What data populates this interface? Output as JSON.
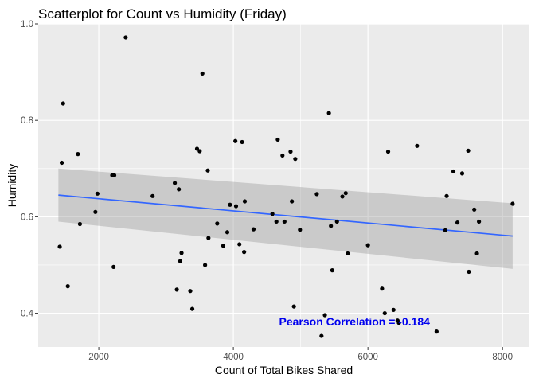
{
  "chart_data": {
    "type": "scatter",
    "title": "Scatterplot for Count vs Humidity (Friday)",
    "xlabel": "Count of Total Bikes Shared",
    "ylabel": "Humidity",
    "xlim": [
      1100,
      8400
    ],
    "ylim": [
      0.33,
      1.0
    ],
    "xticks": [
      2000,
      4000,
      6000,
      8000
    ],
    "yticks": [
      0.4,
      0.6,
      0.8,
      1.0
    ],
    "xtick_labels": [
      "2000",
      "4000",
      "6000",
      "8000"
    ],
    "ytick_labels": [
      "0.4",
      "0.6",
      "0.8",
      "1.0"
    ],
    "grid": true,
    "panel_background": "#ebebeb",
    "point_color": "#000000",
    "trend_color": "#3366ff",
    "band_color": "#999999",
    "annotation": {
      "text": "Pearson Correlation = -0.184",
      "x": 5800,
      "y": 0.383,
      "color": "#0000ee"
    },
    "regression": {
      "x": [
        1400,
        8150
      ],
      "y": [
        0.645,
        0.56
      ],
      "band_upper": [
        0.7,
        0.628
      ],
      "band_lower": [
        0.59,
        0.492
      ]
    },
    "points": [
      {
        "x": 1420,
        "y": 0.538
      },
      {
        "x": 1450,
        "y": 0.712
      },
      {
        "x": 1470,
        "y": 0.835
      },
      {
        "x": 1540,
        "y": 0.456
      },
      {
        "x": 1690,
        "y": 0.73
      },
      {
        "x": 1720,
        "y": 0.585
      },
      {
        "x": 1950,
        "y": 0.61
      },
      {
        "x": 1980,
        "y": 0.648
      },
      {
        "x": 2200,
        "y": 0.686
      },
      {
        "x": 2230,
        "y": 0.686
      },
      {
        "x": 2220,
        "y": 0.496
      },
      {
        "x": 2400,
        "y": 0.972
      },
      {
        "x": 2800,
        "y": 0.643
      },
      {
        "x": 3130,
        "y": 0.67
      },
      {
        "x": 3160,
        "y": 0.449
      },
      {
        "x": 3190,
        "y": 0.657
      },
      {
        "x": 3210,
        "y": 0.508
      },
      {
        "x": 3230,
        "y": 0.525
      },
      {
        "x": 3360,
        "y": 0.446
      },
      {
        "x": 3390,
        "y": 0.409
      },
      {
        "x": 3460,
        "y": 0.741
      },
      {
        "x": 3500,
        "y": 0.736
      },
      {
        "x": 3540,
        "y": 0.897
      },
      {
        "x": 3580,
        "y": 0.5
      },
      {
        "x": 3620,
        "y": 0.696
      },
      {
        "x": 3630,
        "y": 0.556
      },
      {
        "x": 3760,
        "y": 0.586
      },
      {
        "x": 3850,
        "y": 0.54
      },
      {
        "x": 3910,
        "y": 0.568
      },
      {
        "x": 3950,
        "y": 0.625
      },
      {
        "x": 4030,
        "y": 0.757
      },
      {
        "x": 4040,
        "y": 0.622
      },
      {
        "x": 4090,
        "y": 0.543
      },
      {
        "x": 4130,
        "y": 0.755
      },
      {
        "x": 4160,
        "y": 0.527
      },
      {
        "x": 4170,
        "y": 0.632
      },
      {
        "x": 4300,
        "y": 0.574
      },
      {
        "x": 4580,
        "y": 0.606
      },
      {
        "x": 4640,
        "y": 0.59
      },
      {
        "x": 4660,
        "y": 0.76
      },
      {
        "x": 4730,
        "y": 0.727
      },
      {
        "x": 4760,
        "y": 0.59
      },
      {
        "x": 4850,
        "y": 0.735
      },
      {
        "x": 4870,
        "y": 0.632
      },
      {
        "x": 4900,
        "y": 0.414
      },
      {
        "x": 4920,
        "y": 0.72
      },
      {
        "x": 4990,
        "y": 0.573
      },
      {
        "x": 5240,
        "y": 0.647
      },
      {
        "x": 5310,
        "y": 0.353
      },
      {
        "x": 5360,
        "y": 0.396
      },
      {
        "x": 5420,
        "y": 0.815
      },
      {
        "x": 5450,
        "y": 0.581
      },
      {
        "x": 5470,
        "y": 0.489
      },
      {
        "x": 5540,
        "y": 0.59
      },
      {
        "x": 5620,
        "y": 0.642
      },
      {
        "x": 5670,
        "y": 0.649
      },
      {
        "x": 5700,
        "y": 0.524
      },
      {
        "x": 6000,
        "y": 0.541
      },
      {
        "x": 6210,
        "y": 0.451
      },
      {
        "x": 6250,
        "y": 0.4
      },
      {
        "x": 6300,
        "y": 0.735
      },
      {
        "x": 6380,
        "y": 0.407
      },
      {
        "x": 6440,
        "y": 0.385
      },
      {
        "x": 6460,
        "y": 0.38
      },
      {
        "x": 6730,
        "y": 0.747
      },
      {
        "x": 7020,
        "y": 0.362
      },
      {
        "x": 7150,
        "y": 0.572
      },
      {
        "x": 7170,
        "y": 0.643
      },
      {
        "x": 7270,
        "y": 0.694
      },
      {
        "x": 7330,
        "y": 0.588
      },
      {
        "x": 7400,
        "y": 0.69
      },
      {
        "x": 7490,
        "y": 0.737
      },
      {
        "x": 7500,
        "y": 0.486
      },
      {
        "x": 7580,
        "y": 0.615
      },
      {
        "x": 7620,
        "y": 0.524
      },
      {
        "x": 7650,
        "y": 0.59
      },
      {
        "x": 8150,
        "y": 0.627
      }
    ]
  }
}
